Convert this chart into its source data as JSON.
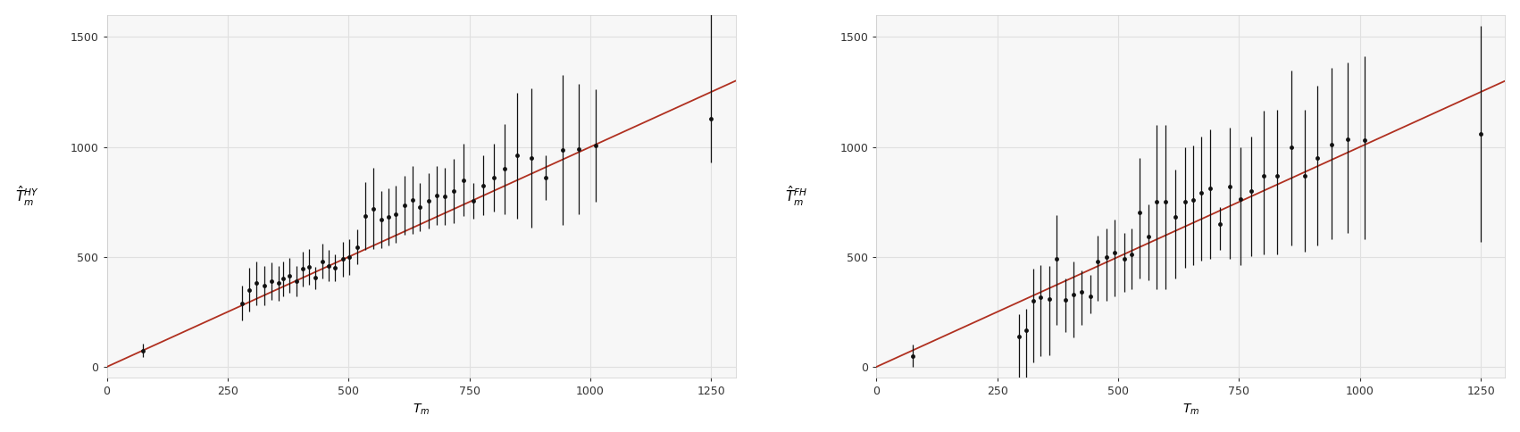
{
  "left_plot": {
    "ylabel_line1": "$\\hat{T}$",
    "ylabel_line2": "${}^{HY}_m$",
    "xlabel": "$T_m$",
    "xlim": [
      0,
      1300
    ],
    "ylim": [
      -50,
      1600
    ],
    "xticks": [
      0,
      250,
      500,
      750,
      1000,
      1250
    ],
    "yticks": [
      0,
      500,
      1000,
      1500
    ],
    "x": [
      75,
      280,
      295,
      310,
      325,
      340,
      355,
      365,
      378,
      392,
      405,
      418,
      432,
      445,
      458,
      472,
      488,
      502,
      518,
      535,
      552,
      568,
      582,
      598,
      615,
      632,
      648,
      665,
      682,
      698,
      718,
      738,
      758,
      778,
      800,
      822,
      848,
      878,
      908,
      942,
      975,
      1010,
      1250
    ],
    "y": [
      75,
      290,
      350,
      380,
      370,
      390,
      380,
      400,
      415,
      390,
      445,
      455,
      405,
      480,
      460,
      450,
      490,
      500,
      545,
      685,
      720,
      670,
      680,
      695,
      735,
      760,
      725,
      755,
      780,
      775,
      800,
      850,
      755,
      825,
      860,
      900,
      960,
      950,
      860,
      985,
      990,
      1005,
      1130
    ],
    "yerr_low": [
      30,
      80,
      100,
      100,
      90,
      85,
      80,
      80,
      80,
      70,
      80,
      80,
      50,
      80,
      70,
      60,
      80,
      80,
      80,
      155,
      185,
      130,
      130,
      130,
      135,
      155,
      110,
      125,
      135,
      130,
      145,
      165,
      80,
      135,
      155,
      205,
      285,
      315,
      100,
      340,
      295,
      255,
      200
    ],
    "yerr_high": [
      30,
      80,
      100,
      100,
      90,
      85,
      80,
      80,
      80,
      70,
      80,
      80,
      50,
      80,
      70,
      60,
      80,
      80,
      80,
      155,
      185,
      130,
      130,
      130,
      135,
      155,
      110,
      125,
      135,
      130,
      145,
      165,
      80,
      135,
      155,
      205,
      285,
      315,
      100,
      340,
      295,
      255,
      600
    ],
    "line_x": [
      0,
      1300
    ],
    "line_y": [
      0,
      1300
    ]
  },
  "right_plot": {
    "ylabel_line1": "$\\hat{T}$",
    "ylabel_line2": "${}^{FH}_m$",
    "xlabel": "$T_m$",
    "xlim": [
      0,
      1300
    ],
    "ylim": [
      -50,
      1600
    ],
    "xticks": [
      0,
      250,
      500,
      750,
      1000,
      1250
    ],
    "yticks": [
      0,
      500,
      1000,
      1500
    ],
    "x": [
      75,
      295,
      310,
      325,
      340,
      358,
      372,
      390,
      408,
      425,
      442,
      458,
      475,
      492,
      512,
      528,
      545,
      562,
      580,
      598,
      618,
      638,
      655,
      672,
      690,
      710,
      730,
      752,
      775,
      800,
      828,
      858,
      885,
      912,
      942,
      975,
      1010,
      1250
    ],
    "y": [
      50,
      140,
      165,
      300,
      315,
      310,
      490,
      305,
      330,
      340,
      320,
      478,
      500,
      520,
      490,
      512,
      700,
      592,
      750,
      750,
      680,
      750,
      760,
      790,
      810,
      648,
      820,
      762,
      800,
      868,
      870,
      1000,
      870,
      950,
      1010,
      1035,
      1030,
      1060
    ],
    "yerr_low": [
      50,
      270,
      295,
      280,
      268,
      258,
      300,
      148,
      198,
      148,
      78,
      178,
      198,
      198,
      148,
      158,
      300,
      198,
      398,
      398,
      278,
      298,
      298,
      308,
      318,
      118,
      328,
      298,
      298,
      358,
      358,
      448,
      348,
      398,
      428,
      428,
      450,
      490
    ],
    "yerr_high": [
      50,
      100,
      100,
      148,
      148,
      148,
      200,
      98,
      148,
      98,
      98,
      118,
      128,
      148,
      118,
      118,
      248,
      148,
      348,
      348,
      218,
      248,
      248,
      258,
      268,
      78,
      268,
      238,
      248,
      298,
      298,
      348,
      298,
      328,
      348,
      348,
      380,
      490
    ],
    "line_x": [
      0,
      1300
    ],
    "line_y": [
      0,
      1300
    ]
  },
  "background_color": "#f7f7f7",
  "grid_color": "#e0e0e0",
  "point_color": "#111111",
  "line_color": "#b03020",
  "errbar_color": "#111111",
  "point_size": 3.5,
  "line_width": 1.3,
  "errbar_linewidth": 0.9,
  "errbar_capsize": 0
}
